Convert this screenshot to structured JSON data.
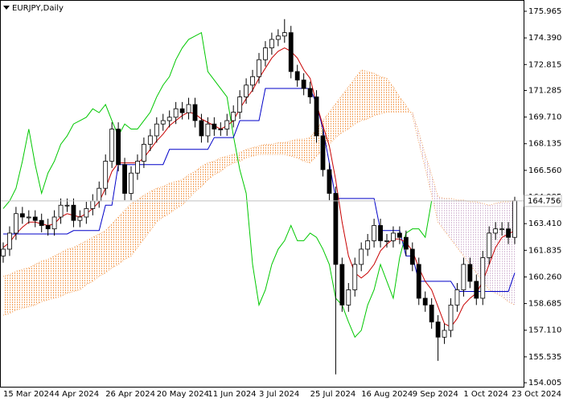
{
  "chart_data": {
    "type": "candlestick",
    "title": "EURJPY,Daily",
    "categories": [
      "15 Mar 2024",
      null,
      null,
      null,
      null,
      null,
      null,
      null,
      "4 Apr 2024",
      null,
      null,
      null,
      null,
      null,
      null,
      null,
      "26 Apr 2024",
      null,
      null,
      null,
      null,
      null,
      null,
      null,
      "20 May 2024",
      null,
      null,
      null,
      null,
      null,
      null,
      null,
      "11 Jun 2024",
      null,
      null,
      null,
      null,
      null,
      null,
      null,
      "3 Jul 2024",
      null,
      null,
      null,
      null,
      null,
      null,
      null,
      "25 Jul 2024",
      null,
      null,
      null,
      null,
      null,
      null,
      null,
      "16 Aug 2024",
      null,
      null,
      null,
      null,
      null,
      null,
      null,
      "9 Sep 2024",
      null,
      null,
      null,
      null,
      null,
      null,
      null,
      "1 Oct 2024",
      null,
      null,
      null,
      null,
      null,
      null,
      null,
      "23 Oct 2024"
    ],
    "open": [
      161.5,
      161.9,
      162.85,
      164.0,
      163.8,
      163.8,
      163.6,
      163.3,
      163.1,
      163.8,
      164.5,
      164.5,
      163.6,
      163.8,
      164.3,
      164.75,
      165.5,
      167.1,
      169.0,
      166.9,
      165.2,
      166.4,
      167.1,
      168.1,
      168.6,
      169.3,
      169.5,
      169.7,
      170.2,
      169.97,
      170.45,
      169.5,
      168.6,
      169.3,
      169.0,
      169.0,
      169.5,
      170.0,
      170.9,
      171.6,
      172.1,
      173.1,
      173.8,
      174.3,
      174.5,
      174.7,
      172.4,
      171.9,
      171.4,
      170.9,
      168.6,
      166.6,
      165.2,
      161.0,
      158.6,
      159.5,
      161.0,
      161.9,
      162.4,
      163.3,
      162.4,
      162.4,
      162.85,
      162.6,
      161.9,
      161.0,
      159.0,
      158.6,
      157.6,
      156.7,
      157.1,
      158.6,
      159.5,
      161.0,
      160.0,
      159.0,
      161.4,
      162.85,
      163.1,
      163.1,
      162.6
    ],
    "high": [
      162.3,
      163.25,
      164.4,
      164.4,
      164.2,
      164.2,
      164.0,
      163.7,
      164.2,
      164.9,
      164.9,
      164.9,
      164.2,
      164.7,
      165.15,
      165.9,
      167.5,
      169.4,
      169.4,
      167.3,
      166.8,
      167.5,
      168.5,
      169.0,
      169.7,
      169.9,
      170.1,
      170.6,
      170.6,
      170.85,
      170.85,
      169.9,
      169.7,
      169.7,
      169.4,
      169.9,
      170.4,
      171.3,
      172.0,
      172.5,
      173.5,
      174.2,
      174.7,
      174.9,
      175.5,
      175.1,
      172.8,
      172.3,
      171.8,
      171.3,
      169.0,
      167.0,
      165.6,
      161.4,
      159.9,
      161.4,
      162.3,
      162.8,
      163.7,
      163.7,
      162.8,
      163.25,
      163.25,
      163.0,
      162.3,
      161.4,
      159.4,
      159.0,
      158.0,
      157.5,
      159.0,
      159.9,
      161.4,
      161.4,
      160.4,
      161.8,
      163.25,
      163.5,
      163.5,
      163.5,
      165.0
    ],
    "low": [
      161.1,
      161.5,
      162.45,
      163.4,
      163.4,
      163.2,
      162.9,
      162.7,
      162.7,
      163.4,
      164.1,
      163.2,
      163.2,
      163.4,
      163.9,
      164.35,
      165.1,
      166.7,
      166.5,
      164.8,
      164.8,
      166.0,
      166.7,
      167.7,
      168.2,
      168.9,
      169.1,
      169.3,
      169.57,
      169.57,
      169.1,
      168.2,
      168.2,
      168.6,
      168.6,
      168.6,
      169.1,
      169.6,
      170.5,
      171.2,
      171.7,
      172.7,
      173.4,
      173.9,
      174.1,
      172.0,
      171.5,
      171.0,
      170.5,
      168.2,
      166.2,
      164.8,
      154.5,
      158.2,
      158.2,
      159.1,
      160.6,
      161.5,
      162.0,
      162.0,
      162.0,
      162.0,
      162.2,
      161.5,
      160.6,
      158.6,
      158.2,
      157.2,
      155.3,
      156.3,
      156.7,
      158.2,
      159.1,
      159.6,
      158.6,
      158.6,
      161.0,
      162.45,
      162.7,
      162.2,
      162.2
    ],
    "close": [
      161.9,
      162.85,
      164.0,
      163.8,
      163.8,
      163.6,
      163.3,
      163.1,
      163.8,
      164.5,
      164.5,
      163.6,
      163.8,
      164.3,
      164.75,
      165.5,
      167.1,
      169.0,
      166.9,
      165.2,
      166.4,
      167.1,
      168.1,
      168.6,
      169.3,
      169.5,
      169.7,
      170.2,
      169.97,
      170.45,
      169.5,
      168.6,
      169.3,
      169.0,
      169.0,
      169.5,
      170.0,
      170.9,
      171.6,
      172.1,
      173.1,
      173.8,
      174.3,
      174.5,
      174.7,
      172.4,
      171.9,
      171.4,
      170.9,
      168.6,
      166.6,
      165.2,
      161.0,
      158.6,
      159.5,
      161.0,
      161.9,
      162.4,
      163.3,
      162.4,
      162.4,
      162.85,
      162.6,
      161.9,
      161.0,
      159.0,
      158.6,
      157.6,
      156.7,
      157.1,
      158.6,
      159.5,
      161.0,
      160.0,
      159.0,
      161.4,
      162.85,
      163.1,
      163.1,
      162.6,
      164.76
    ],
    "bull_color": "#ffffff",
    "bear_color": "#000000",
    "candle_edge_color": "#000000",
    "cloud": {
      "bear_color": "#f4a460",
      "bull_color": "#d8bfd8",
      "span_a": [
        158.0,
        158.1,
        158.3,
        158.4,
        158.5,
        158.6,
        158.8,
        158.9,
        159.0,
        159.1,
        159.3,
        159.4,
        159.5,
        159.8,
        160.0,
        160.3,
        160.5,
        160.8,
        161.0,
        161.3,
        161.5,
        162.0,
        162.5,
        163.0,
        163.5,
        163.8,
        164.0,
        164.3,
        164.5,
        164.9,
        165.3,
        165.6,
        166.0,
        166.3,
        166.5,
        166.8,
        167.0,
        167.1,
        167.3,
        167.4,
        167.5,
        167.5,
        167.5,
        167.5,
        167.5,
        167.4,
        167.3,
        167.1,
        167.0,
        167.4,
        167.8,
        168.1,
        168.5,
        168.8,
        169.0,
        169.3,
        169.5,
        169.6,
        169.8,
        169.9,
        170.0,
        170.0,
        170.0,
        170.0,
        170.0,
        168.8,
        167.5,
        166.3,
        165.0,
        164.9,
        164.9,
        164.8,
        164.8,
        164.7,
        164.7,
        164.6,
        164.5,
        164.6,
        164.7,
        164.7,
        164.8
      ],
      "span_b": [
        160.3,
        160.4,
        160.6,
        160.7,
        160.8,
        161.0,
        161.2,
        161.3,
        161.5,
        161.7,
        161.9,
        162.0,
        162.2,
        162.4,
        162.6,
        162.8,
        163.0,
        163.4,
        163.8,
        164.2,
        164.6,
        164.8,
        165.1,
        165.3,
        165.5,
        165.6,
        165.8,
        165.9,
        166.0,
        166.3,
        166.5,
        166.8,
        167.0,
        167.1,
        167.3,
        167.4,
        167.5,
        167.6,
        167.8,
        167.9,
        168.0,
        168.1,
        168.1,
        168.2,
        168.2,
        168.3,
        168.4,
        168.4,
        168.5,
        169.0,
        169.5,
        170.0,
        170.5,
        171.0,
        171.5,
        172.0,
        172.5,
        172.4,
        172.3,
        172.1,
        172.0,
        171.5,
        170.9,
        170.4,
        169.8,
        168.2,
        166.7,
        165.1,
        163.5,
        163.0,
        162.5,
        162.0,
        161.5,
        161.0,
        160.5,
        160.0,
        159.5,
        159.3,
        159.1,
        158.8,
        158.6
      ]
    },
    "series": [
      {
        "color": "#00c800",
        "values": [
          164.3,
          164.75,
          165.5,
          167.1,
          169.0,
          166.9,
          165.2,
          166.4,
          167.1,
          168.1,
          168.6,
          169.3,
          169.5,
          169.7,
          170.2,
          169.97,
          170.45,
          169.5,
          168.6,
          169.3,
          169.0,
          169.0,
          169.5,
          170.0,
          170.9,
          171.6,
          172.1,
          173.1,
          173.8,
          174.3,
          174.5,
          174.7,
          172.4,
          171.9,
          171.4,
          170.9,
          168.6,
          166.6,
          165.2,
          161.0,
          158.6,
          159.5,
          161.0,
          161.9,
          162.4,
          163.3,
          162.4,
          162.4,
          162.85,
          162.6,
          161.9,
          161.0,
          159.0,
          158.6,
          157.6,
          156.7,
          157.1,
          158.6,
          159.5,
          161.0,
          160.0,
          159.0,
          161.4,
          162.85,
          163.1,
          163.1,
          162.6,
          164.76,
          null,
          null,
          null,
          null,
          null,
          null,
          null,
          null,
          null,
          null,
          null,
          null,
          null
        ]
      },
      {
        "color": "#0000c8",
        "values": [
          162.8,
          162.8,
          162.8,
          162.8,
          162.8,
          162.8,
          162.8,
          162.8,
          162.8,
          162.8,
          162.8,
          163.0,
          163.0,
          163.0,
          163.0,
          163.0,
          164.5,
          164.5,
          166.9,
          166.9,
          166.9,
          166.9,
          166.9,
          166.9,
          166.9,
          166.9,
          167.8,
          167.8,
          167.8,
          167.8,
          167.8,
          167.8,
          167.8,
          168.5,
          168.5,
          168.5,
          168.5,
          169.5,
          169.5,
          169.5,
          169.5,
          171.4,
          171.4,
          171.4,
          171.4,
          171.4,
          171.4,
          171.4,
          171.4,
          170.5,
          169.0,
          167.0,
          164.9,
          164.9,
          164.9,
          164.9,
          164.9,
          164.9,
          164.9,
          163.0,
          163.0,
          163.0,
          163.0,
          161.5,
          161.5,
          160.0,
          160.0,
          160.0,
          160.0,
          160.0,
          160.0,
          159.4,
          159.4,
          159.4,
          159.4,
          159.4,
          159.4,
          159.4,
          159.4,
          159.4,
          160.5
        ]
      },
      {
        "color": "#c80000",
        "values": [
          162.0,
          162.3,
          162.8,
          163.2,
          163.5,
          163.5,
          163.4,
          163.3,
          163.4,
          163.8,
          164.0,
          163.9,
          163.8,
          164.0,
          164.3,
          164.7,
          165.5,
          166.5,
          167.0,
          167.0,
          167.0,
          167.0,
          167.3,
          167.8,
          168.3,
          168.7,
          169.2,
          169.5,
          169.8,
          170.0,
          169.9,
          169.6,
          169.4,
          169.2,
          169.0,
          169.2,
          169.5,
          170.2,
          170.8,
          171.3,
          172.0,
          172.6,
          173.2,
          173.6,
          173.8,
          173.6,
          173.2,
          172.5,
          172.0,
          170.5,
          169.2,
          168.0,
          166.0,
          163.5,
          161.5,
          160.5,
          160.2,
          160.5,
          161.0,
          161.8,
          162.2,
          162.5,
          162.5,
          162.3,
          161.8,
          160.8,
          160.0,
          159.5,
          158.5,
          157.5,
          157.3,
          157.8,
          158.6,
          159.0,
          159.3,
          160.0,
          161.0,
          162.0,
          162.6,
          162.8,
          163.0
        ]
      }
    ],
    "last_price": 164.756,
    "last_price_color": "#c0c0c0",
    "ylim": [
      153.77,
      176.44
    ],
    "yticks": [
      175.965,
      {
        "value": 174.39,
        "label": "174.390"
      },
      172.815,
      171.285,
      {
        "value": 169.71,
        "label": "169.710"
      },
      168.135,
      {
        "value": 166.56,
        "label": "166.560"
      },
      164.985,
      {
        "value": 163.41,
        "label": "163.410"
      },
      161.835,
      {
        "value": 160.26,
        "label": "160.260"
      },
      158.685,
      {
        "value": 157.11,
        "label": "157.110"
      },
      155.535,
      154.005
    ],
    "grid": false
  }
}
